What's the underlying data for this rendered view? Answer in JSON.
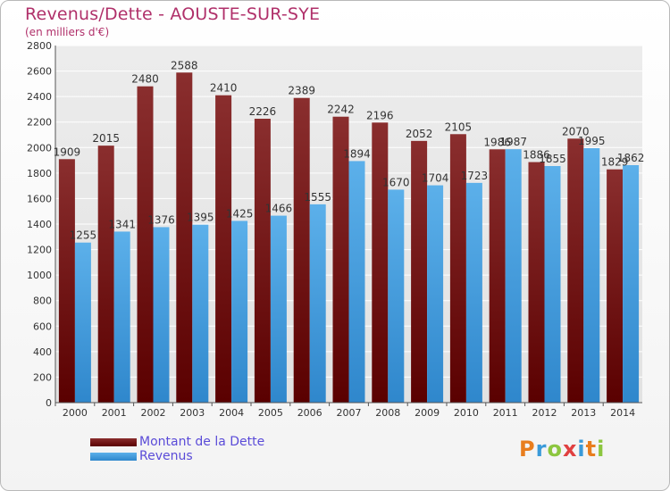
{
  "header": {
    "title": "Revenus/Dette - AOUSTE-SUR-SYE",
    "subtitle": "(en milliers d'€)"
  },
  "chart_data": {
    "type": "bar",
    "categories": [
      "2000",
      "2001",
      "2002",
      "2003",
      "2004",
      "2005",
      "2006",
      "2007",
      "2008",
      "2009",
      "2010",
      "2011",
      "2012",
      "2013",
      "2014"
    ],
    "series": [
      {
        "name": "Montant de la Dette",
        "color": "#7a1a1a",
        "values": [
          1909,
          2015,
          2480,
          2588,
          2410,
          2226,
          2389,
          2242,
          2196,
          2052,
          2105,
          1986,
          1886,
          2070,
          1829
        ]
      },
      {
        "name": "Revenus",
        "color": "#4aa3e0",
        "values": [
          1255,
          1341,
          1376,
          1395,
          1425,
          1466,
          1555,
          1894,
          1670,
          1704,
          1723,
          1987,
          1855,
          1995,
          1862
        ]
      }
    ],
    "ylim": [
      0,
      2800
    ],
    "yticks": [
      0,
      200,
      400,
      600,
      800,
      1000,
      1200,
      1400,
      1600,
      1800,
      2000,
      2200,
      2400,
      2600,
      2800
    ],
    "grid": true,
    "legend": "bottom-left"
  },
  "brand": {
    "logo_letters": [
      "P",
      "r",
      "o",
      "x",
      "i",
      "t",
      "i"
    ],
    "logo_colors": [
      "#e87d1e",
      "#3a9ad9",
      "#8cc63f",
      "#e04040",
      "#3a9ad9",
      "#e87d1e",
      "#8cc63f"
    ]
  }
}
